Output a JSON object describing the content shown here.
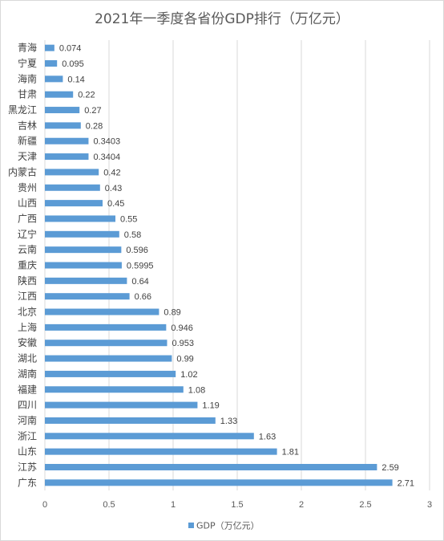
{
  "chart_data": {
    "type": "bar",
    "orientation": "horizontal",
    "title": "2021年一季度各省份GDP排行（万亿元）",
    "categories": [
      "青海",
      "宁夏",
      "海南",
      "甘肃",
      "黑龙江",
      "吉林",
      "新疆",
      "天津",
      "内蒙古",
      "贵州",
      "山西",
      "广西",
      "辽宁",
      "云南",
      "重庆",
      "陕西",
      "江西",
      "北京",
      "上海",
      "安徽",
      "湖北",
      "湖南",
      "福建",
      "四川",
      "河南",
      "浙江",
      "山东",
      "江苏",
      "广东"
    ],
    "series": [
      {
        "name": "GDP（万亿元）",
        "values": [
          0.074,
          0.095,
          0.14,
          0.22,
          0.27,
          0.28,
          0.3403,
          0.3404,
          0.42,
          0.43,
          0.45,
          0.55,
          0.58,
          0.596,
          0.5995,
          0.64,
          0.66,
          0.89,
          0.946,
          0.953,
          0.99,
          1.02,
          1.08,
          1.19,
          1.33,
          1.63,
          1.81,
          2.59,
          2.71
        ],
        "labels": [
          "0.074",
          "0.095",
          "0.14",
          "0.22",
          "0.27",
          "0.28",
          "0.3403",
          "0.3404",
          "0.42",
          "0.43",
          "0.45",
          "0.55",
          "0.58",
          "0.596",
          "0.5995",
          "0.64",
          "0.66",
          "0.89",
          "0.946",
          "0.953",
          "0.99",
          "1.02",
          "1.08",
          "1.19",
          "1.33",
          "1.63",
          "1.81",
          "2.59",
          "2.71"
        ]
      }
    ],
    "xlim": [
      0,
      3
    ],
    "xticks": [
      "0",
      "0.5",
      "1",
      "1.5",
      "2",
      "2.5",
      "3"
    ],
    "xtick_values": [
      0,
      0.5,
      1,
      1.5,
      2,
      2.5,
      3
    ],
    "grid": "vertical",
    "legend": "bottom",
    "color": "#5b9bd5"
  }
}
